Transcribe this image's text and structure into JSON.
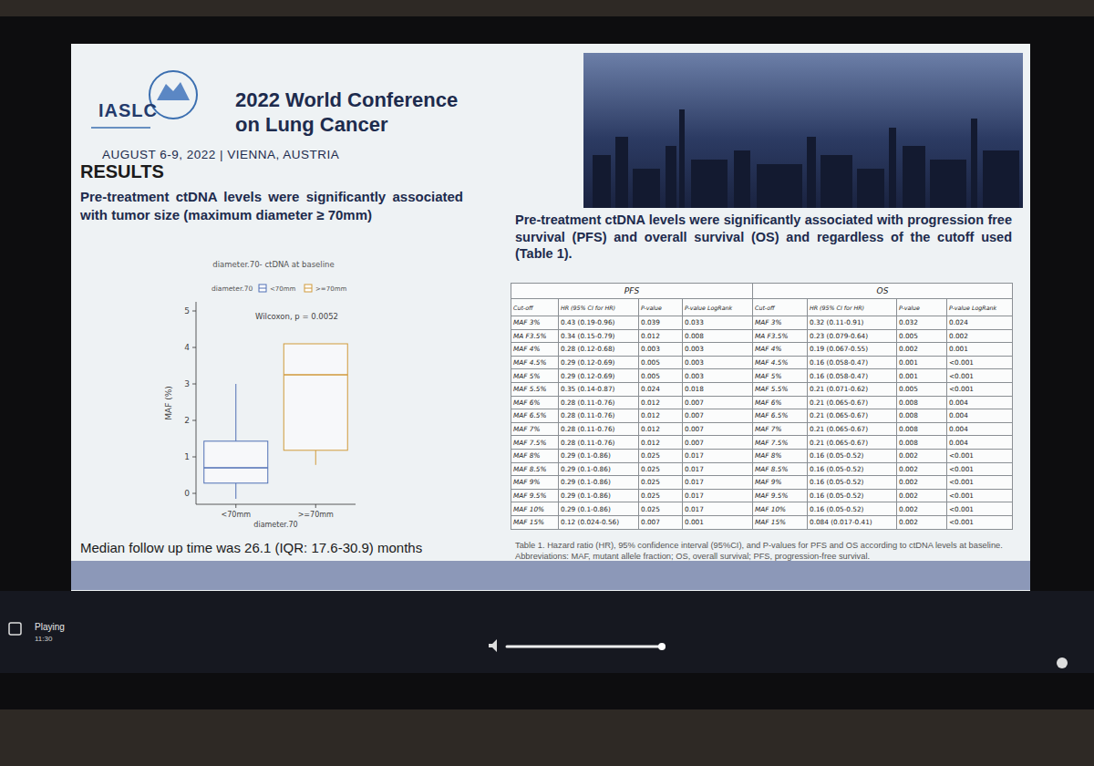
{
  "header": {
    "org": "IASLC",
    "title": [
      "2022 World Conference",
      "on Lung Cancer"
    ],
    "dates": "AUGUST 6-9, 2022 | VIENNA, AUSTRIA"
  },
  "left": {
    "heading": "RESULTS",
    "text": "Pre-treatment ctDNA levels were significantly associated with tumor size (maximum diameter ≥ 70mm)",
    "footnote": "Median follow up time was 26.1 (IQR: 17.6-30.9) months"
  },
  "chart_data": {
    "type": "box",
    "title": "diameter.70- ctDNA at baseline",
    "legend_title": "diameter.70",
    "annotation": "Wilcoxon, p = 0.0052",
    "x_label": "diameter.70",
    "y_label": "MAF (%)",
    "categories": [
      "<70mm",
      ">=70mm"
    ],
    "series": [
      {
        "name": "<70mm",
        "color": "#4f6fb5",
        "low": -0.15,
        "q1": 0.28,
        "median": 0.7,
        "q3": 1.43,
        "high": 3.0
      },
      {
        "name": ">=70mm",
        "color": "#d09a3a",
        "low": 0.78,
        "q1": 1.18,
        "median": 3.25,
        "q3": 4.1,
        "high": 4.1
      }
    ],
    "ylim": [
      -0.3,
      5.25
    ],
    "yticks": [
      0,
      1,
      2,
      3,
      4,
      5
    ],
    "legend": "top"
  },
  "right": {
    "text": "Pre-treatment ctDNA levels were significantly associated with progression free survival (PFS) and overall survival (OS) and regardless of the cutoff used (Table 1).",
    "table": {
      "groups": [
        "PFS",
        "OS"
      ],
      "columns": [
        "Cut-off",
        "HR (95% CI for HR)",
        "P-value",
        "P-value LogRank"
      ],
      "pfs_rows": [
        [
          "MAF 3%",
          "0.43 (0.19-0.96)",
          "0.039",
          "0.033"
        ],
        [
          "MA F3.5%",
          "0.34 (0.15-0.79)",
          "0.012",
          "0.008"
        ],
        [
          "MAF 4%",
          "0.28 (0.12-0.68)",
          "0.003",
          "0.003"
        ],
        [
          "MAF 4.5%",
          "0.29 (0.12-0.69)",
          "0.005",
          "0.003"
        ],
        [
          "MAF 5%",
          "0.29 (0.12-0.69)",
          "0.005",
          "0.003"
        ],
        [
          "MAF 5.5%",
          "0.35 (0.14-0.87)",
          "0.024",
          "0.018"
        ],
        [
          "MAF 6%",
          "0.28 (0.11-0.76)",
          "0.012",
          "0.007"
        ],
        [
          "MAF 6.5%",
          "0.28 (0.11-0.76)",
          "0.012",
          "0.007"
        ],
        [
          "MAF 7%",
          "0.28 (0.11-0.76)",
          "0.012",
          "0.007"
        ],
        [
          "MAF 7.5%",
          "0.28 (0.11-0.76)",
          "0.012",
          "0.007"
        ],
        [
          "MAF 8%",
          "0.29 (0.1-0.86)",
          "0.025",
          "0.017"
        ],
        [
          "MAF 8.5%",
          "0.29 (0.1-0.86)",
          "0.025",
          "0.017"
        ],
        [
          "MAF 9%",
          "0.29 (0.1-0.86)",
          "0.025",
          "0.017"
        ],
        [
          "MAF 9.5%",
          "0.29 (0.1-0.86)",
          "0.025",
          "0.017"
        ],
        [
          "MAF 10%",
          "0.29 (0.1-0.86)",
          "0.025",
          "0.017"
        ],
        [
          "MAF 15%",
          "0.12 (0.024-0.56)",
          "0.007",
          "0.001"
        ]
      ],
      "os_rows": [
        [
          "MAF 3%",
          "0.32 (0.11-0.91)",
          "0.032",
          "0.024"
        ],
        [
          "MA F3.5%",
          "0.23 (0.079-0.64)",
          "0.005",
          "0.002"
        ],
        [
          "MAF 4%",
          "0.19 (0.067-0.55)",
          "0.002",
          "0.001"
        ],
        [
          "MAF 4.5%",
          "0.16 (0.058-0.47)",
          "0.001",
          "<0.001"
        ],
        [
          "MAF 5%",
          "0.16 (0.058-0.47)",
          "0.001",
          "<0.001"
        ],
        [
          "MAF 5.5%",
          "0.21 (0.071-0.62)",
          "0.005",
          "<0.001"
        ],
        [
          "MAF 6%",
          "0.21 (0.065-0.67)",
          "0.008",
          "0.004"
        ],
        [
          "MAF 6.5%",
          "0.21 (0.065-0.67)",
          "0.008",
          "0.004"
        ],
        [
          "MAF 7%",
          "0.21 (0.065-0.67)",
          "0.008",
          "0.004"
        ],
        [
          "MAF 7.5%",
          "0.21 (0.065-0.67)",
          "0.008",
          "0.004"
        ],
        [
          "MAF 8%",
          "0.16 (0.05-0.52)",
          "0.002",
          "<0.001"
        ],
        [
          "MAF 8.5%",
          "0.16 (0.05-0.52)",
          "0.002",
          "<0.001"
        ],
        [
          "MAF 9%",
          "0.16 (0.05-0.52)",
          "0.002",
          "<0.001"
        ],
        [
          "MAF 9.5%",
          "0.16 (0.05-0.52)",
          "0.002",
          "<0.001"
        ],
        [
          "MAF 10%",
          "0.16 (0.05-0.52)",
          "0.002",
          "<0.001"
        ],
        [
          "MAF 15%",
          "0.084 (0.017-0.41)",
          "0.002",
          "<0.001"
        ]
      ]
    },
    "caption": "Table 1. Hazard ratio (HR), 95% confidence interval (95%CI), and P-values for PFS and OS according to ctDNA levels at baseline. Abbreviations: MAF, mutant allele fraction; OS, overall survival; PFS, progression-free survival."
  },
  "player": {
    "status": "Playing",
    "time": "11:30"
  }
}
